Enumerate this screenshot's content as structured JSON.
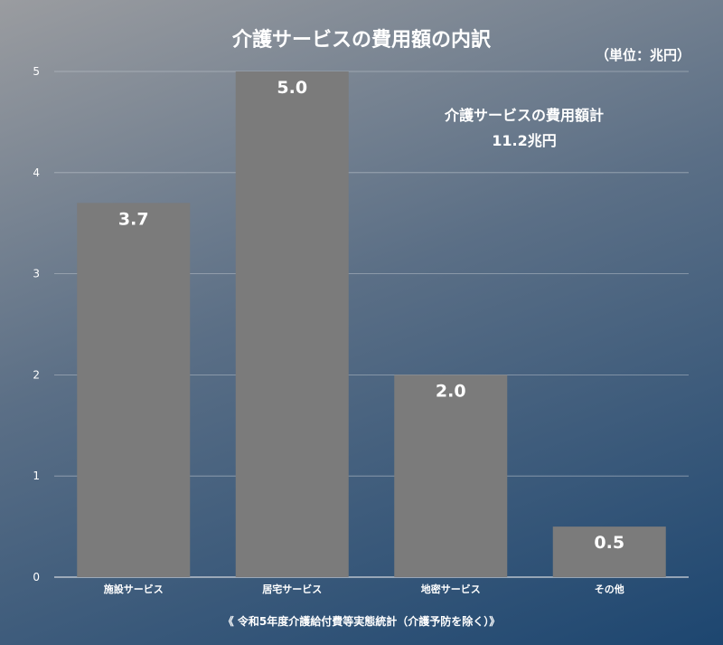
{
  "chart_data": {
    "type": "bar",
    "title": "介護サービスの費用額の内訳",
    "unit_label": "（単位：兆円）",
    "total_label": "介護サービスの費用額計",
    "total_value": "11.2兆円",
    "categories": [
      "施設サービス",
      "居宅サービス",
      "地密サービス",
      "その他"
    ],
    "values": [
      3.7,
      5.0,
      2.0,
      0.5
    ],
    "value_labels": [
      "3.7",
      "5.0",
      "2.0",
      "0.5"
    ],
    "ylim": [
      0,
      5
    ],
    "yticks": [
      "0",
      "1",
      "2",
      "3",
      "4",
      "5"
    ],
    "grid": true,
    "xlabel": "",
    "ylabel": "",
    "source": "《 令和5年度介護給付費等実態統計（介護予防を除く）》",
    "colors": {
      "bar": "#7b7b7b",
      "grid": "#c9ced6"
    }
  }
}
